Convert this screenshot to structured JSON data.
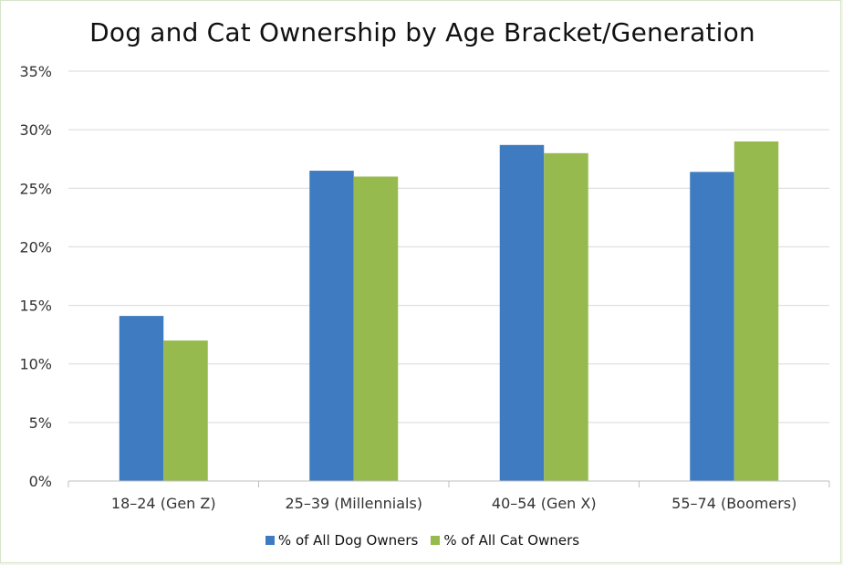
{
  "chart_data": {
    "type": "bar",
    "title": "Dog and Cat Ownership by Age Bracket/Generation",
    "categories": [
      "18–24 (Gen Z)",
      "25–39 (Millennials)",
      "40–54 (Gen X)",
      "55–74 (Boomers)"
    ],
    "series": [
      {
        "name": "% of All Dog Owners",
        "color": "#3f7bc1",
        "values": [
          14.1,
          26.5,
          28.7,
          26.4
        ]
      },
      {
        "name": "% of All Cat Owners",
        "color": "#97ba4f",
        "values": [
          12.0,
          26.0,
          28.0,
          29.0
        ]
      }
    ],
    "ylim": [
      0,
      35
    ],
    "yticks": [
      "0%",
      "5%",
      "10%",
      "15%",
      "20%",
      "25%",
      "30%",
      "35%"
    ],
    "grid": true,
    "legend_position": "bottom"
  }
}
